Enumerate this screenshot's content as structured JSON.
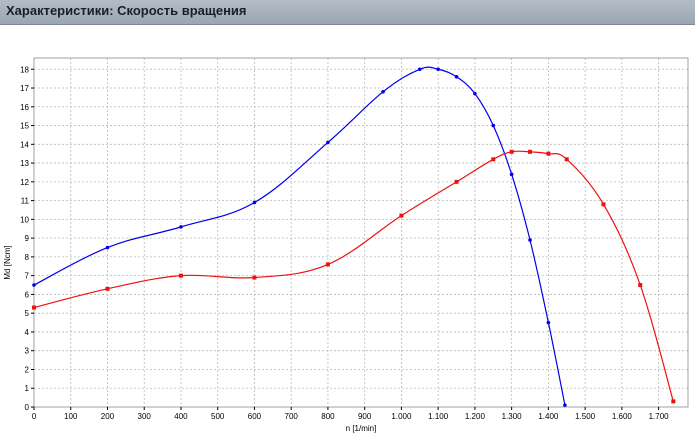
{
  "header": {
    "title": "Характеристики: Скорость вращения"
  },
  "colors": {
    "header_bg": "#a7b2be",
    "grid": "#b9b9b9",
    "series_blue": "#0000ee",
    "series_red": "#ee1111"
  },
  "chart_data": {
    "type": "line",
    "title": "",
    "xlabel": "n [1/min]",
    "ylabel": "Md [Ncm]",
    "xlim": [
      0,
      1780
    ],
    "ylim": [
      0,
      18.6
    ],
    "x_ticks": [
      0,
      100,
      200,
      300,
      400,
      500,
      600,
      700,
      800,
      900,
      1000,
      1100,
      1200,
      1300,
      1400,
      1500,
      1600,
      1700
    ],
    "x_tick_labels": [
      "0",
      "100",
      "200",
      "300",
      "400",
      "500",
      "600",
      "700",
      "800",
      "900",
      "1.000",
      "1.100",
      "1.200",
      "1.300",
      "1.400",
      "1.500",
      "1.600",
      "1.700"
    ],
    "y_ticks": [
      0,
      1,
      2,
      3,
      4,
      5,
      6,
      7,
      8,
      9,
      10,
      11,
      12,
      13,
      14,
      15,
      16,
      17,
      18
    ],
    "y_tick_labels": [
      "0",
      "1",
      "2",
      "3",
      "4",
      "5",
      "6",
      "7",
      "8",
      "9",
      "10",
      "11",
      "12",
      "13",
      "14",
      "15",
      "16",
      "17",
      "18"
    ],
    "grid": true,
    "series": [
      {
        "color": "#0000ee",
        "marker": "circle",
        "points": [
          [
            0,
            6.5
          ],
          [
            200,
            8.5
          ],
          [
            400,
            9.6
          ],
          [
            600,
            10.9
          ],
          [
            800,
            14.1
          ],
          [
            950,
            16.8
          ],
          [
            1050,
            18.0
          ],
          [
            1100,
            18.0
          ],
          [
            1150,
            17.6
          ],
          [
            1200,
            16.7
          ],
          [
            1250,
            15.0
          ],
          [
            1300,
            12.4
          ],
          [
            1350,
            8.9
          ],
          [
            1400,
            4.5
          ],
          [
            1445,
            0.1
          ]
        ]
      },
      {
        "color": "#ee1111",
        "marker": "square",
        "points": [
          [
            0,
            5.3
          ],
          [
            200,
            6.3
          ],
          [
            400,
            7.0
          ],
          [
            600,
            6.9
          ],
          [
            800,
            7.6
          ],
          [
            1000,
            10.2
          ],
          [
            1150,
            12.0
          ],
          [
            1250,
            13.2
          ],
          [
            1300,
            13.6
          ],
          [
            1350,
            13.6
          ],
          [
            1400,
            13.5
          ],
          [
            1450,
            13.2
          ],
          [
            1550,
            10.8
          ],
          [
            1650,
            6.5
          ],
          [
            1740,
            0.3
          ]
        ]
      }
    ]
  }
}
